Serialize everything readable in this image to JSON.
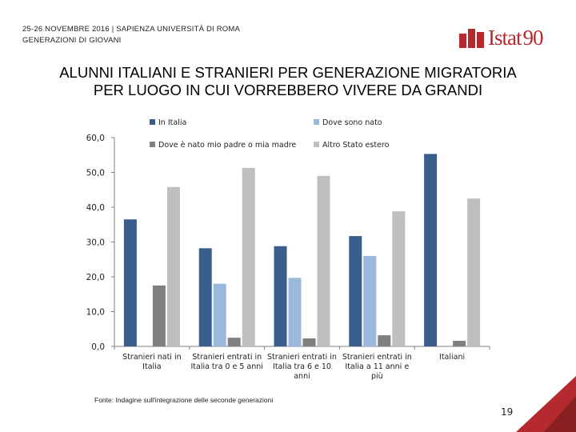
{
  "header": {
    "event_line": "25-26 NOVEMBRE 2016 | SAPIENZA UNIVERSITÀ DI ROMA",
    "section_line": "GENERAZIONI DI GIOVANI",
    "logo_text": "Istat",
    "logo_number": "90"
  },
  "slide": {
    "title_line1": "ALUNNI ITALIANI E STRANIERI PER GENERAZIONE MIGRATORIA",
    "title_line2": "PER LUOGO IN CUI VORREBBERO VIVERE DA GRANDI",
    "source": "Fonte: Indagine sull'integrazione delle seconde generazioni",
    "page_number": "19"
  },
  "colors": {
    "brand": "#b52a2e",
    "series": [
      "#3a5e8c",
      "#9ab7dc",
      "#808080",
      "#bfbfbf"
    ]
  },
  "chart_data": {
    "type": "bar",
    "title": "",
    "xlabel": "",
    "ylabel": "",
    "ylim": [
      0,
      60
    ],
    "yticks": [
      "0,0",
      "10,0",
      "20,0",
      "30,0",
      "40,0",
      "50,0",
      "60,0"
    ],
    "categories": [
      [
        "Stranieri nati in",
        "Italia"
      ],
      [
        "Stranieri entrati in",
        "Italia tra 0 e 5 anni"
      ],
      [
        "Stranieri entrati in",
        "Italia tra 6 e 10",
        "anni"
      ],
      [
        "Stranieri entrati in",
        "Italia a 11 anni e",
        "più"
      ],
      [
        "Italiani"
      ]
    ],
    "series": [
      {
        "name": "In Italia",
        "values": [
          36.5,
          28.2,
          28.8,
          31.7,
          55.3
        ]
      },
      {
        "name": "Dove sono nato",
        "values": [
          0,
          18.0,
          19.7,
          26.0,
          0
        ]
      },
      {
        "name": "Dove è nato mio padre o mia madre",
        "values": [
          17.5,
          2.5,
          2.3,
          3.2,
          1.6
        ]
      },
      {
        "name": "Altro Stato estero",
        "values": [
          45.8,
          51.3,
          49.0,
          38.8,
          42.5
        ]
      }
    ],
    "legend_position": "top"
  }
}
